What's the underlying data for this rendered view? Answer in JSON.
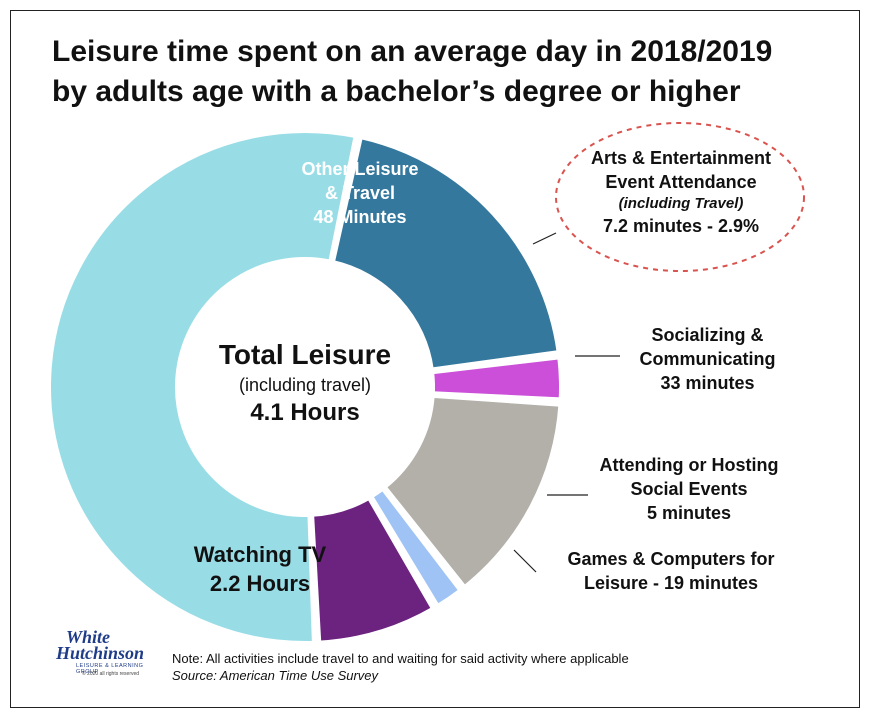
{
  "chart_data": {
    "type": "donut",
    "title_line1": "Leisure time spent on an average day in 2018/2019",
    "title_line2": "by adults age with a bachelor’s degree or higher",
    "total": {
      "title": "Total Leisure",
      "subtitle": "(including travel)",
      "value": "4.1 Hours"
    },
    "segments": [
      {
        "name": "Other Leisure & Travel",
        "value_minutes": 48,
        "color": "#35789d",
        "label_lines": [
          "Other Leisure",
          "& Travel",
          "48 Minutes"
        ]
      },
      {
        "name": "Arts & Entertainment Event Attendance",
        "value_minutes": 7.2,
        "percent": 2.9,
        "color": "#cb4fd9",
        "label_lines": [
          "Arts & Entertainment",
          "Event Attendance",
          "(including Travel)",
          "7.2 minutes - 2.9%"
        ]
      },
      {
        "name": "Socializing & Communicating",
        "value_minutes": 33,
        "color": "#b3afa9",
        "label_lines": [
          "Socializing &",
          "Communicating",
          "33 minutes"
        ]
      },
      {
        "name": "Attending or Hosting Social Events",
        "value_minutes": 5,
        "color": "#9ec3f4",
        "label_lines": [
          "Attending or Hosting",
          "Social Events",
          "5 minutes"
        ]
      },
      {
        "name": "Games & Computers for Leisure",
        "value_minutes": 19,
        "color": "#6c2380",
        "label_lines": [
          "Games & Computers for",
          "Leisure - 19 minutes"
        ]
      },
      {
        "name": "Watching TV",
        "value_minutes": 132,
        "color": "#98dde6",
        "label_lines": [
          "Watching TV",
          "2.2 Hours"
        ]
      }
    ],
    "highlight": "Arts & Entertainment Event Attendance",
    "highlight_color": "#d9534f"
  },
  "footer": {
    "note": "Note: All activities include travel to and waiting for said activity where applicable",
    "source": "Source: American Time Use Survey"
  },
  "logo": {
    "line1": "White",
    "line2": "Hutchinson",
    "tagline": "LEISURE & LEARNING GROUP",
    "copyright": "© 2020 all rights reserved"
  }
}
